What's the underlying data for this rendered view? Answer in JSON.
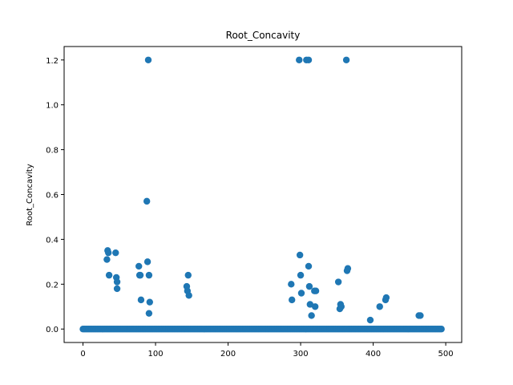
{
  "chart_data": {
    "type": "scatter",
    "title": "Root_Concavity",
    "xlabel": "",
    "ylabel": "Root_Concavity",
    "xlim": [
      -26,
      522
    ],
    "ylim": [
      -0.06,
      1.26
    ],
    "xticks": [
      0,
      100,
      200,
      300,
      400,
      500
    ],
    "yticks": [
      0.0,
      0.2,
      0.4,
      0.6,
      0.8,
      1.0,
      1.2
    ],
    "ytick_labels": [
      "0.0",
      "0.2",
      "0.4",
      "0.6",
      "0.8",
      "1.0",
      "1.2"
    ],
    "grid": false,
    "legend": "none",
    "marker_color": "#1f77b4",
    "baseline": {
      "y": 0.0,
      "x_start": 0,
      "x_end": 494,
      "step": 2
    },
    "points": [
      {
        "x": 33,
        "y": 0.31
      },
      {
        "x": 34,
        "y": 0.35
      },
      {
        "x": 35,
        "y": 0.34
      },
      {
        "x": 36,
        "y": 0.24
      },
      {
        "x": 45,
        "y": 0.34
      },
      {
        "x": 46,
        "y": 0.23
      },
      {
        "x": 47,
        "y": 0.21
      },
      {
        "x": 47,
        "y": 0.18
      },
      {
        "x": 77,
        "y": 0.28
      },
      {
        "x": 78,
        "y": 0.24
      },
      {
        "x": 79,
        "y": 0.24
      },
      {
        "x": 80,
        "y": 0.13
      },
      {
        "x": 88,
        "y": 0.57
      },
      {
        "x": 89,
        "y": 0.3
      },
      {
        "x": 90,
        "y": 1.2
      },
      {
        "x": 91,
        "y": 0.24
      },
      {
        "x": 92,
        "y": 0.12
      },
      {
        "x": 91,
        "y": 0.07
      },
      {
        "x": 143,
        "y": 0.19
      },
      {
        "x": 144,
        "y": 0.17
      },
      {
        "x": 145,
        "y": 0.24
      },
      {
        "x": 146,
        "y": 0.15
      },
      {
        "x": 287,
        "y": 0.2
      },
      {
        "x": 288,
        "y": 0.13
      },
      {
        "x": 298,
        "y": 1.2
      },
      {
        "x": 299,
        "y": 0.33
      },
      {
        "x": 300,
        "y": 0.24
      },
      {
        "x": 301,
        "y": 0.16
      },
      {
        "x": 308,
        "y": 1.2
      },
      {
        "x": 311,
        "y": 1.2
      },
      {
        "x": 311,
        "y": 0.28
      },
      {
        "x": 312,
        "y": 0.19
      },
      {
        "x": 313,
        "y": 0.11
      },
      {
        "x": 315,
        "y": 0.06
      },
      {
        "x": 319,
        "y": 0.17
      },
      {
        "x": 321,
        "y": 0.17
      },
      {
        "x": 320,
        "y": 0.1
      },
      {
        "x": 352,
        "y": 0.21
      },
      {
        "x": 354,
        "y": 0.09
      },
      {
        "x": 355,
        "y": 0.11
      },
      {
        "x": 356,
        "y": 0.1
      },
      {
        "x": 363,
        "y": 1.2
      },
      {
        "x": 364,
        "y": 0.26
      },
      {
        "x": 365,
        "y": 0.27
      },
      {
        "x": 396,
        "y": 0.04
      },
      {
        "x": 409,
        "y": 0.1
      },
      {
        "x": 417,
        "y": 0.13
      },
      {
        "x": 418,
        "y": 0.14
      },
      {
        "x": 463,
        "y": 0.06
      },
      {
        "x": 465,
        "y": 0.06
      }
    ]
  }
}
